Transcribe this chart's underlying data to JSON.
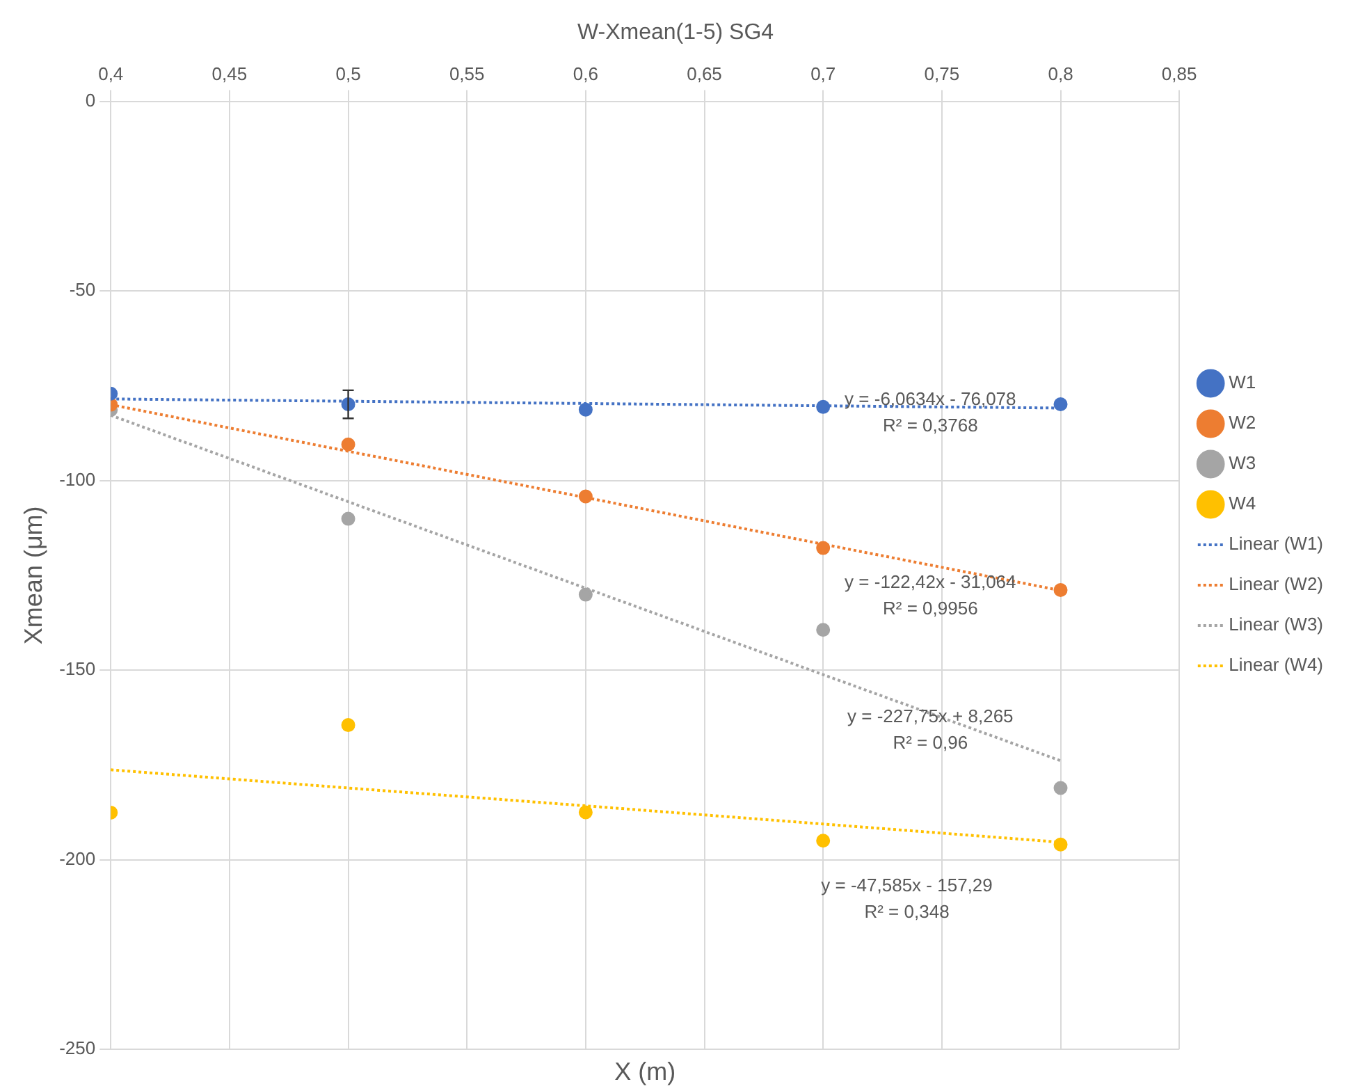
{
  "chart_data": {
    "type": "scatter",
    "title": "W-Xmean(1-5) SG4",
    "xlabel": "X (m)",
    "ylabel": "Xmean (μm)",
    "xlim": [
      0.4,
      0.85
    ],
    "xticks": [
      {
        "value": 0.4,
        "label": "0,4"
      },
      {
        "value": 0.45,
        "label": "0,45"
      },
      {
        "value": 0.5,
        "label": "0,5"
      },
      {
        "value": 0.55,
        "label": "0,55"
      },
      {
        "value": 0.6,
        "label": "0,6"
      },
      {
        "value": 0.65,
        "label": "0,65"
      },
      {
        "value": 0.7,
        "label": "0,7"
      },
      {
        "value": 0.75,
        "label": "0,75"
      },
      {
        "value": 0.8,
        "label": "0,8"
      },
      {
        "value": 0.85,
        "label": "0,85"
      }
    ],
    "ylim": [
      -250,
      0
    ],
    "yticks": [
      -250,
      -200,
      -150,
      -100,
      -50,
      0
    ],
    "grid": true,
    "legend": "right",
    "marker": "circle",
    "x": [
      0.4,
      0.5,
      0.6,
      0.7,
      0.8
    ],
    "series": [
      {
        "name": "W1",
        "color": "#4472c4",
        "values": [
          -77.1,
          -79.9,
          -81.3,
          -80.6,
          -79.9
        ],
        "errors": [
          null,
          3.7,
          null,
          null,
          null
        ]
      },
      {
        "name": "W2",
        "color": "#ed7d31",
        "values": [
          -80.0,
          -90.5,
          -104.2,
          -117.8,
          -128.9
        ]
      },
      {
        "name": "W3",
        "color": "#a5a5a5",
        "values": [
          -81.4,
          -110.1,
          -130.1,
          -139.4,
          -181.1
        ]
      },
      {
        "name": "W4",
        "color": "#ffc000",
        "values": [
          -187.6,
          -164.5,
          -187.5,
          -195.0,
          -196.0
        ]
      },
      {
        "name": "Linear (W1)",
        "type": "line",
        "color": "#4472c4",
        "line_style": "dotted",
        "marker": "none",
        "values": [
          -78.5,
          -79.1,
          -79.7,
          -80.3,
          -80.9
        ]
      },
      {
        "name": "Linear (W2)",
        "type": "line",
        "color": "#ed7d31",
        "line_style": "dotted",
        "marker": "none",
        "values": [
          -80.0,
          -92.3,
          -104.5,
          -116.8,
          -129.0
        ]
      },
      {
        "name": "Linear (W3)",
        "type": "line",
        "color": "#a5a5a5",
        "line_style": "dotted",
        "marker": "none",
        "values": [
          -82.8,
          -105.6,
          -128.4,
          -151.2,
          -173.9
        ]
      },
      {
        "name": "Linear (W4)",
        "type": "line",
        "color": "#ffc000",
        "line_style": "dotted",
        "marker": "none",
        "values": [
          -176.3,
          -181.1,
          -185.8,
          -190.6,
          -195.4
        ]
      }
    ],
    "annotations": [
      "y = -6,0634x - 76,078",
      "R² = 0,3768",
      "y = -122,42x - 31,064",
      "R² = 0,9956",
      "y = -227,75x + 8,265",
      "R² = 0,96",
      "y = -47,585x - 157,29",
      "R² = 0,348"
    ]
  }
}
